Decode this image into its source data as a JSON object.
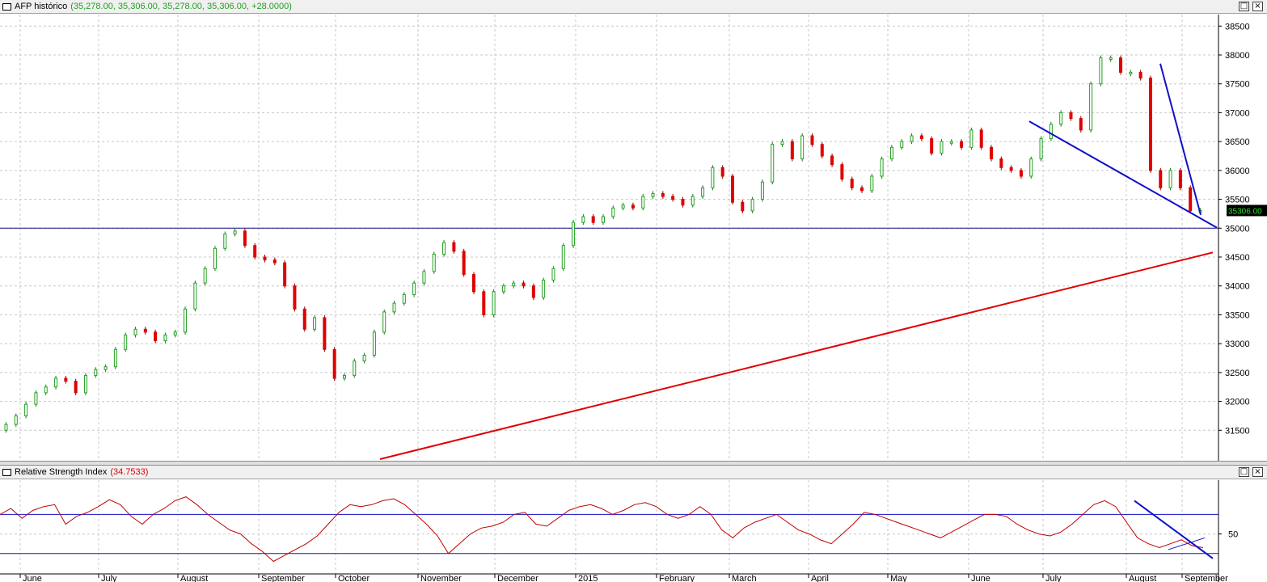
{
  "price_panel": {
    "title": "AFP histórico",
    "values_text": "(35,278.00, 35,306.00, 35,278.00, 35,306.00, +28.0000)",
    "last_price_label": "35306.00",
    "restore_icon": "restore-icon",
    "close_icon": "close-icon"
  },
  "rsi_panel": {
    "title": "Relative Strength Index",
    "value_text": "(34.7533)",
    "restore_icon": "restore-icon",
    "close_icon": "close-icon"
  },
  "colors": {
    "up_candle": "#22a022",
    "down_candle": "#e00000",
    "trendline_blue": "#1010c8",
    "trendline_red": "#e00000",
    "rsi_line": "#c00000",
    "grid": "#c8c8c8"
  },
  "chart_data": [
    {
      "type": "line",
      "series": [
        {
          "values": [
            31600,
            31750,
            31950,
            32150,
            32250,
            32400,
            32350,
            32150,
            32450,
            32550,
            32600,
            32900,
            33150,
            33250,
            33200,
            33050,
            33150,
            33200,
            33600,
            34050,
            34300,
            34650,
            34900,
            34950,
            34700,
            34500,
            34450,
            34400,
            34000,
            33600,
            33250,
            33450,
            32900,
            32400,
            32450,
            32700,
            32800,
            33200,
            33550,
            33700,
            33850,
            34050,
            34250,
            34550,
            34750,
            34600,
            34200,
            33900,
            33500,
            33900,
            34000,
            34050,
            34000,
            33800,
            34100,
            34300,
            34700,
            35100,
            35200,
            35100,
            35200,
            35350,
            35400,
            35350,
            35550,
            35600,
            35550,
            35500,
            35400,
            35550,
            35700,
            36050,
            35900,
            35450,
            35300,
            35500,
            35800,
            36450,
            36500,
            36200,
            36600,
            36450,
            36250,
            36100,
            35850,
            35700,
            35650,
            35900,
            36200,
            36400,
            36500,
            36600,
            36550,
            36300,
            36500,
            36500,
            36400,
            36700,
            36400,
            36200,
            36050,
            36000,
            35900,
            36200,
            36550,
            36800,
            37000,
            36900,
            36700,
            37500,
            37950,
            37950,
            37700,
            37700,
            37600,
            36000,
            35700,
            36000,
            35700,
            35300,
            35306
          ]
        }
      ],
      "ylim": [
        31000,
        38700
      ],
      "yticks": [
        31500,
        32000,
        32500,
        33000,
        33500,
        34000,
        34500,
        35000,
        35500,
        36000,
        36500,
        37000,
        37500,
        38000,
        38500
      ],
      "reference_lines": [
        35000
      ],
      "grid": true
    },
    {
      "type": "line",
      "series": [
        {
          "values": [
            70,
            76,
            66,
            74,
            78,
            80,
            60,
            68,
            72,
            78,
            85,
            80,
            68,
            60,
            70,
            76,
            84,
            88,
            80,
            70,
            62,
            54,
            50,
            40,
            32,
            22,
            28,
            34,
            40,
            48,
            60,
            72,
            80,
            78,
            80,
            84,
            86,
            80,
            70,
            60,
            48,
            30,
            40,
            50,
            56,
            58,
            62,
            70,
            72,
            60,
            58,
            66,
            74,
            78,
            80,
            76,
            70,
            74,
            80,
            82,
            78,
            70,
            66,
            70,
            78,
            70,
            54,
            46,
            56,
            62,
            66,
            70,
            62,
            54,
            50,
            44,
            40,
            50,
            60,
            72,
            70,
            66,
            62,
            58,
            54,
            50,
            46,
            52,
            58,
            64,
            70,
            70,
            68,
            60,
            54,
            50,
            48,
            52,
            60,
            70,
            80,
            84,
            78,
            62,
            46,
            40,
            36,
            40,
            44,
            38,
            36
          ]
        }
      ],
      "ylim": [
        10,
        105
      ],
      "yticks": [
        50
      ],
      "reference_lines": [
        30,
        70
      ],
      "grid": true
    }
  ],
  "x_axis_labels": [
    "June",
    "July",
    "August",
    "September",
    "October",
    "November",
    "December",
    "2015",
    "February",
    "March",
    "April",
    "May",
    "June",
    "July",
    "August",
    "September"
  ]
}
